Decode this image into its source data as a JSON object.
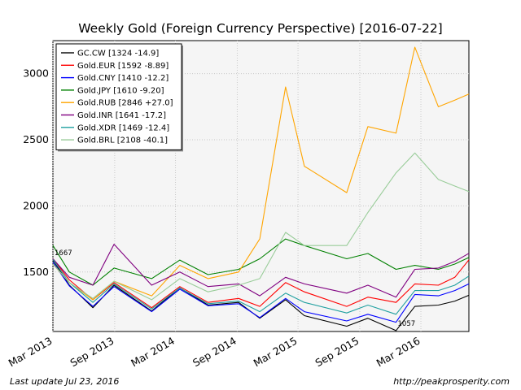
{
  "chart_data": {
    "type": "line",
    "title": "Weekly Gold (Foreign Currency Perspective)  [2016-07-22]",
    "xlabel": "",
    "ylabel": "",
    "x_ticks": [
      "Mar 2013",
      "Sep 2013",
      "Mar 2014",
      "Sep 2014",
      "Mar 2015",
      "Sep 2015",
      "Mar 2016"
    ],
    "xlim": [
      "2013-03-01",
      "2016-07-22"
    ],
    "ylim": [
      1050,
      3250
    ],
    "y_ticks": [
      1500,
      2000,
      2500,
      3000
    ],
    "grid": true,
    "legend_position": "top-left",
    "annotations": [
      {
        "text": "1667",
        "x": "2013-03-01",
        "y": 1592
      },
      {
        "text": "1057",
        "x": "2015-12-18",
        "y": 1057
      }
    ],
    "series_keys": [
      "2013-03",
      "2013-06",
      "2013-09",
      "2013-12",
      "2014-03",
      "2014-06",
      "2014-09",
      "2014-12",
      "2015-01",
      "2015-03",
      "2015-06",
      "2015-09",
      "2015-12",
      "2016-02",
      "2016-04",
      "2016-07"
    ],
    "series": [
      {
        "name": "GC.CW [1324 -14.9]",
        "color": "#000000",
        "x": [
          "2013-03-01",
          "2013-04-19",
          "2013-06-28",
          "2013-08-30",
          "2013-12-20",
          "2014-03-14",
          "2014-06-06",
          "2014-09-05",
          "2014-11-07",
          "2015-01-23",
          "2015-03-20",
          "2015-07-24",
          "2015-09-25",
          "2015-12-18",
          "2016-02-12",
          "2016-04-22",
          "2016-06-10",
          "2016-07-22"
        ],
        "y": [
          1590,
          1400,
          1230,
          1400,
          1205,
          1380,
          1250,
          1270,
          1150,
          1290,
          1170,
          1090,
          1150,
          1057,
          1240,
          1250,
          1280,
          1324
        ]
      },
      {
        "name": "Gold.EUR [1592 -8.89]",
        "color": "#ff0000",
        "x": [
          "2013-03-01",
          "2013-04-19",
          "2013-06-28",
          "2013-08-30",
          "2013-12-20",
          "2014-03-14",
          "2014-06-06",
          "2014-09-05",
          "2014-11-07",
          "2015-01-23",
          "2015-03-20",
          "2015-07-24",
          "2015-09-25",
          "2015-12-18",
          "2016-02-12",
          "2016-04-22",
          "2016-06-10",
          "2016-07-22"
        ],
        "y": [
          1600,
          1440,
          1290,
          1420,
          1230,
          1390,
          1270,
          1300,
          1240,
          1420,
          1350,
          1240,
          1310,
          1270,
          1410,
          1400,
          1460,
          1592
        ]
      },
      {
        "name": "Gold.CNY [1410 -12.2]",
        "color": "#0000ff",
        "x": [
          "2013-03-01",
          "2013-04-19",
          "2013-06-28",
          "2013-08-30",
          "2013-12-20",
          "2014-03-14",
          "2014-06-06",
          "2014-09-05",
          "2014-11-07",
          "2015-01-23",
          "2015-03-20",
          "2015-07-24",
          "2015-09-25",
          "2015-12-18",
          "2016-02-12",
          "2016-04-22",
          "2016-06-10",
          "2016-07-22"
        ],
        "y": [
          1575,
          1395,
          1240,
          1390,
          1200,
          1370,
          1245,
          1260,
          1155,
          1300,
          1200,
          1130,
          1180,
          1120,
          1330,
          1320,
          1360,
          1410
        ]
      },
      {
        "name": "Gold.JPY [1610 -9.20]",
        "color": "#008000",
        "x": [
          "2013-03-01",
          "2013-04-19",
          "2013-06-28",
          "2013-08-30",
          "2013-12-20",
          "2014-03-14",
          "2014-06-06",
          "2014-09-05",
          "2014-11-07",
          "2015-01-23",
          "2015-03-20",
          "2015-07-24",
          "2015-09-25",
          "2015-12-18",
          "2016-02-12",
          "2016-04-22",
          "2016-06-10",
          "2016-07-22"
        ],
        "y": [
          1700,
          1500,
          1400,
          1530,
          1450,
          1590,
          1480,
          1520,
          1600,
          1750,
          1700,
          1600,
          1640,
          1520,
          1550,
          1520,
          1560,
          1610
        ]
      },
      {
        "name": "Gold.RUB [2846 +27.0]",
        "color": "#ffa500",
        "x": [
          "2013-03-01",
          "2013-04-19",
          "2013-06-28",
          "2013-08-30",
          "2013-12-20",
          "2014-03-14",
          "2014-06-06",
          "2014-09-05",
          "2014-11-07",
          "2015-01-23",
          "2015-03-20",
          "2015-07-24",
          "2015-09-25",
          "2015-12-18",
          "2016-02-12",
          "2016-04-22",
          "2016-06-10",
          "2016-07-22"
        ],
        "y": [
          1560,
          1420,
          1290,
          1430,
          1320,
          1550,
          1450,
          1500,
          1750,
          2900,
          2300,
          2100,
          2600,
          2550,
          3200,
          2750,
          2800,
          2846
        ]
      },
      {
        "name": "Gold.INR [1641 -17.2]",
        "color": "#800080",
        "x": [
          "2013-03-01",
          "2013-04-19",
          "2013-06-28",
          "2013-08-30",
          "2013-12-20",
          "2014-03-14",
          "2014-06-06",
          "2014-09-05",
          "2014-11-07",
          "2015-01-23",
          "2015-03-20",
          "2015-07-24",
          "2015-09-25",
          "2015-12-18",
          "2016-02-12",
          "2016-04-22",
          "2016-06-10",
          "2016-07-22"
        ],
        "y": [
          1600,
          1460,
          1400,
          1710,
          1400,
          1500,
          1390,
          1410,
          1320,
          1460,
          1410,
          1340,
          1400,
          1310,
          1520,
          1530,
          1580,
          1641
        ]
      },
      {
        "name": "Gold.XDR [1469 -12.4]",
        "color": "#20a0a0",
        "x": [
          "2013-03-01",
          "2013-04-19",
          "2013-06-28",
          "2013-08-30",
          "2013-12-20",
          "2014-03-14",
          "2014-06-06",
          "2014-09-05",
          "2014-11-07",
          "2015-01-23",
          "2015-03-20",
          "2015-07-24",
          "2015-09-25",
          "2015-12-18",
          "2016-02-12",
          "2016-04-22",
          "2016-06-10",
          "2016-07-22"
        ],
        "y": [
          1595,
          1420,
          1270,
          1410,
          1220,
          1380,
          1260,
          1280,
          1200,
          1340,
          1270,
          1190,
          1250,
          1180,
          1360,
          1360,
          1400,
          1469
        ]
      },
      {
        "name": "Gold.BRL [2108 -40.1]",
        "color": "#99cc99",
        "x": [
          "2013-03-01",
          "2013-04-19",
          "2013-06-28",
          "2013-08-30",
          "2013-12-20",
          "2014-03-14",
          "2014-06-06",
          "2014-09-05",
          "2014-11-07",
          "2015-01-23",
          "2015-03-20",
          "2015-07-24",
          "2015-09-25",
          "2015-12-18",
          "2016-02-12",
          "2016-04-22",
          "2016-06-10",
          "2016-07-22"
        ],
        "y": [
          1560,
          1420,
          1300,
          1430,
          1290,
          1450,
          1350,
          1400,
          1450,
          1800,
          1700,
          1700,
          1950,
          2250,
          2400,
          2200,
          2150,
          2108
        ]
      }
    ]
  },
  "footer": {
    "left": "Last update Jul 23, 2016",
    "right": "http://peakprosperity.com"
  }
}
